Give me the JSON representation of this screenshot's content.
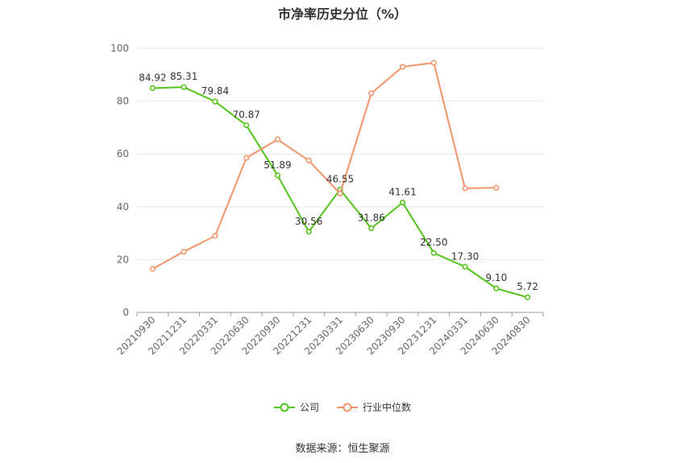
{
  "chart_data": {
    "type": "line",
    "title": "市净率历史分位（%）",
    "categories": [
      "20210930",
      "20211231",
      "20220331",
      "20220630",
      "20220930",
      "20221231",
      "20230331",
      "20230630",
      "20230930",
      "20231231",
      "20240331",
      "20240630",
      "20240830"
    ],
    "series": [
      {
        "name": "公司",
        "color": "#52c41a",
        "values": [
          84.92,
          85.31,
          79.84,
          70.87,
          51.89,
          30.56,
          46.55,
          31.86,
          41.61,
          22.5,
          17.3,
          9.1,
          5.72
        ],
        "labels": [
          "84.92",
          "85.31",
          "79.84",
          "70.87",
          "51.89",
          "30.56",
          "46.55",
          "31.86",
          "41.61",
          "22.50",
          "17.30",
          "9.10",
          "5.72"
        ]
      },
      {
        "name": "行业中位数",
        "color": "#f4946b",
        "values": [
          16.5,
          23.0,
          29.0,
          58.5,
          65.5,
          57.5,
          45.0,
          83.0,
          93.0,
          94.5,
          47.0,
          47.2,
          null
        ]
      }
    ],
    "ylim": [
      0,
      100
    ],
    "yticks": [
      0,
      20,
      40,
      60,
      80,
      100
    ],
    "grid": true,
    "legend_position": "bottom"
  },
  "source": "数据来源：恒生聚源"
}
